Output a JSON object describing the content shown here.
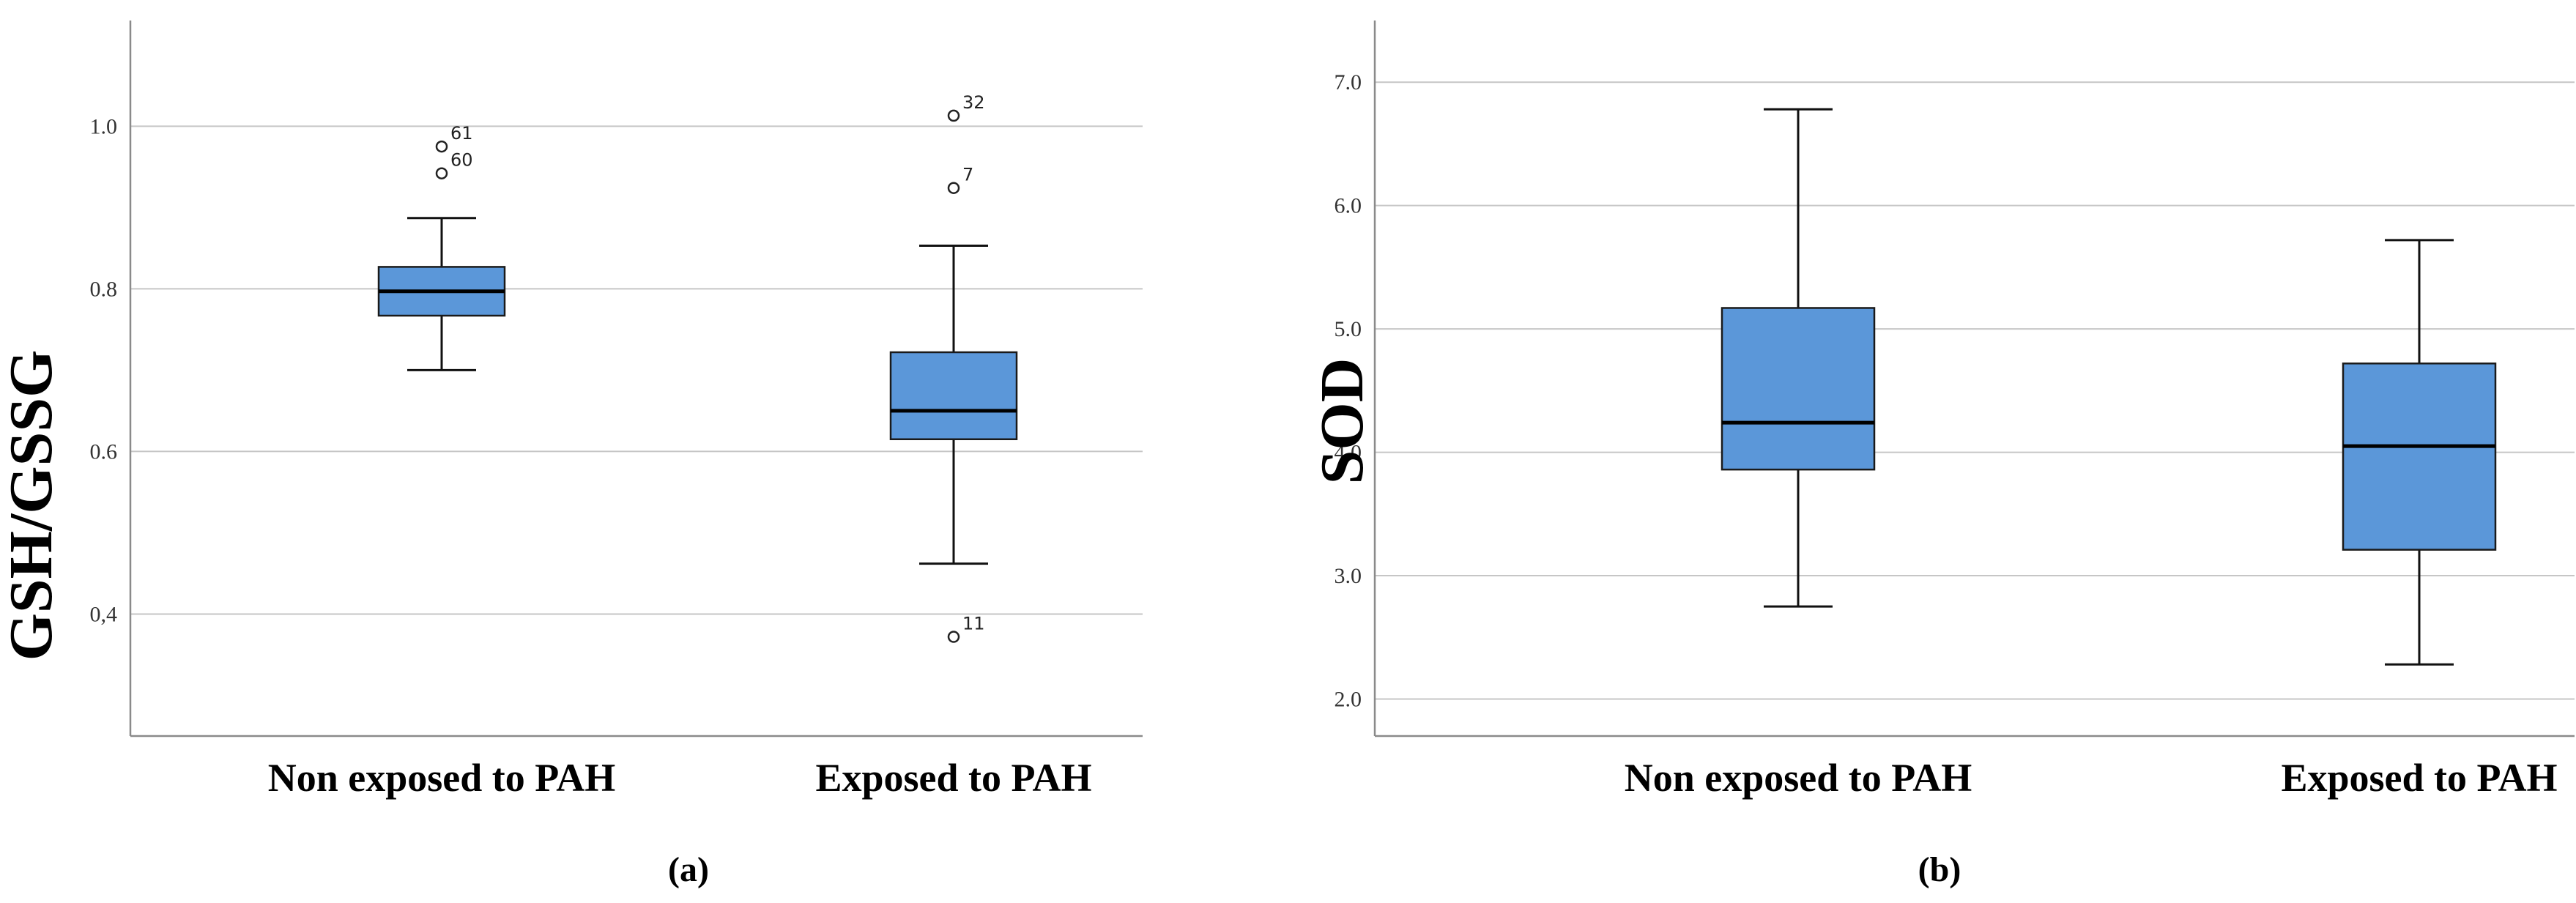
{
  "chart_data": [
    {
      "type": "boxplot",
      "panel_label": "(a)",
      "ylabel": "GSH/GSSG",
      "categories": [
        "Non exposed to PAH",
        "Exposed to PAH"
      ],
      "ylim": [
        0.25,
        1.13
      ],
      "yticks": [
        {
          "value": 0.4,
          "label": "0,4"
        },
        {
          "value": 0.6,
          "label": "0.6"
        },
        {
          "value": 0.8,
          "label": "0.8"
        },
        {
          "value": 1.0,
          "label": "1.0"
        }
      ],
      "grid": true,
      "color": "#5b97d9",
      "boxes": [
        {
          "category": "Non exposed to PAH",
          "whisker_low": 0.7,
          "q1": 0.767,
          "median": 0.797,
          "q3": 0.827,
          "whisker_high": 0.887,
          "outliers": [
            {
              "value": 0.942,
              "label": "60"
            },
            {
              "value": 0.975,
              "label": "61"
            }
          ]
        },
        {
          "category": "Exposed to PAH",
          "whisker_low": 0.462,
          "q1": 0.615,
          "median": 0.65,
          "q3": 0.722,
          "whisker_high": 0.853,
          "outliers": [
            {
              "value": 1.013,
              "label": "32"
            },
            {
              "value": 0.924,
              "label": "7"
            },
            {
              "value": 0.372,
              "label": "11"
            }
          ]
        }
      ]
    },
    {
      "type": "boxplot",
      "panel_label": "(b)",
      "ylabel": "SOD",
      "categories": [
        "Non exposed to PAH",
        "Exposed to PAH"
      ],
      "ylim": [
        1.7,
        7.5
      ],
      "yticks": [
        {
          "value": 2.0,
          "label": "2.0"
        },
        {
          "value": 3.0,
          "label": "3.0"
        },
        {
          "value": 4.0,
          "label": "4.0"
        },
        {
          "value": 5.0,
          "label": "5.0"
        },
        {
          "value": 6.0,
          "label": "6.0"
        },
        {
          "value": 7.0,
          "label": "7.0"
        }
      ],
      "grid": true,
      "color": "#5b97d9",
      "boxes": [
        {
          "category": "Non exposed to PAH",
          "whisker_low": 2.75,
          "q1": 3.86,
          "median": 4.24,
          "q3": 5.17,
          "whisker_high": 6.78,
          "outliers": []
        },
        {
          "category": "Exposed to PAH",
          "whisker_low": 2.28,
          "q1": 3.21,
          "median": 4.05,
          "q3": 4.72,
          "whisker_high": 5.72,
          "outliers": []
        }
      ]
    }
  ]
}
